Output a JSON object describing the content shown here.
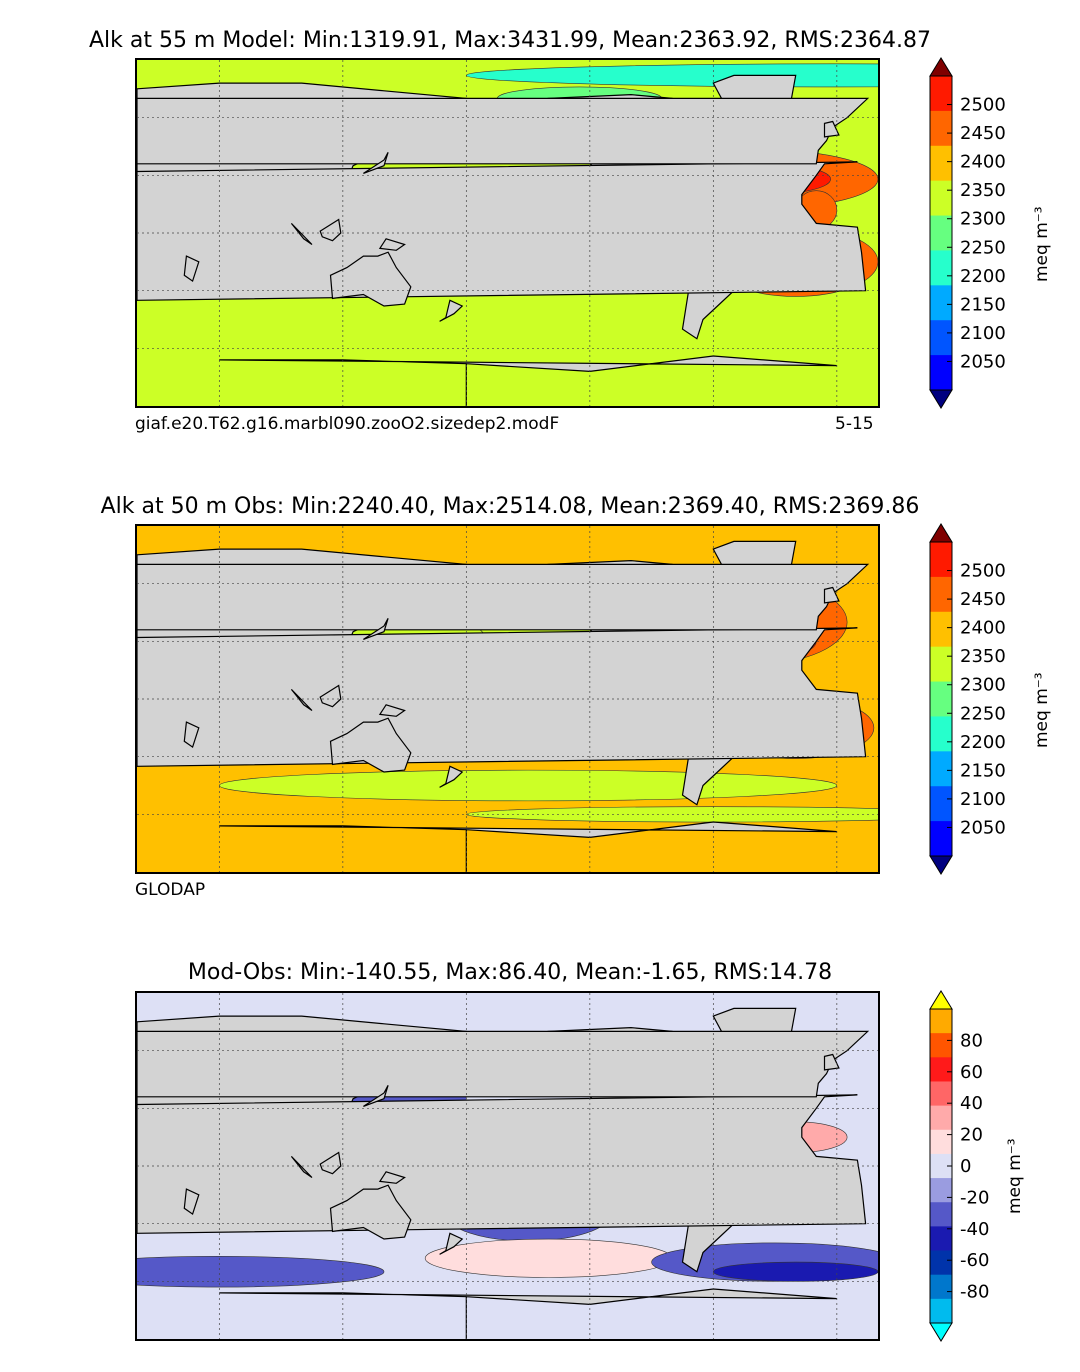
{
  "panels": [
    {
      "title": "Alk at 55 m Model: Min:1319.91, Max:3431.99, Mean:2363.92, RMS:2364.87",
      "caption_left": "giaf.e20.T62.g16.marbl090.zooO2.sizedep2.modF",
      "caption_right": "5-15",
      "colorbar": {
        "unit": "meq m⁻³",
        "ticks": [
          "2500",
          "2450",
          "2400",
          "2350",
          "2300",
          "2250",
          "2200",
          "2150",
          "2100",
          "2050"
        ],
        "colors": [
          "#7f0000",
          "#ff1a00",
          "#ff6600",
          "#ffc000",
          "#ccff26",
          "#66ff80",
          "#26ffcc",
          "#00aaff",
          "#0055ff",
          "#0000ff",
          "#00007f"
        ]
      }
    },
    {
      "title": "Alk at 50 m Obs: Min:2240.40, Max:2514.08, Mean:2369.40, RMS:2369.86",
      "caption_left": "GLODAP",
      "caption_right": "",
      "colorbar": {
        "unit": "meq m⁻³",
        "ticks": [
          "2500",
          "2450",
          "2400",
          "2350",
          "2300",
          "2250",
          "2200",
          "2150",
          "2100",
          "2050"
        ],
        "colors": [
          "#7f0000",
          "#ff1a00",
          "#ff6600",
          "#ffc000",
          "#ccff26",
          "#66ff80",
          "#26ffcc",
          "#00aaff",
          "#0055ff",
          "#0000ff",
          "#00007f"
        ]
      }
    },
    {
      "title": "Mod-Obs: Min:-140.55, Max:86.40, Mean:-1.65, RMS:14.78",
      "caption_left": "",
      "caption_right": "",
      "colorbar": {
        "unit": "meq m⁻³",
        "ticks": [
          "80",
          "60",
          "40",
          "20",
          "0",
          "-20",
          "-40",
          "-60",
          "-80"
        ],
        "colors": [
          "#ffff00",
          "#ffaa00",
          "#ff5500",
          "#ff1a1a",
          "#ff6666",
          "#ffaaaa",
          "#ffdddd",
          "#dde0f5",
          "#9a9ce0",
          "#5558c8",
          "#1a1ab0",
          "#0033aa",
          "#0077cc",
          "#00bbee",
          "#00ffff"
        ]
      }
    }
  ],
  "chart_data": [
    {
      "type": "heatmap",
      "title": "Alk at 55 m Model: Min:1319.91, Max:3431.99, Mean:2363.92, RMS:2364.87",
      "variable": "Alk",
      "depth_m": 55,
      "source": "Model",
      "stats": {
        "min": 1319.91,
        "max": 3431.99,
        "mean": 2363.92,
        "rms": 2364.87
      },
      "colorbar_levels": [
        2050,
        2100,
        2150,
        2200,
        2250,
        2300,
        2350,
        2400,
        2450,
        2500
      ],
      "colorbar_extend": "both",
      "units": "meq m-3"
    },
    {
      "type": "heatmap",
      "title": "Alk at 50 m Obs: Min:2240.40, Max:2514.08, Mean:2369.40, RMS:2369.86",
      "variable": "Alk",
      "depth_m": 50,
      "source": "Obs",
      "stats": {
        "min": 2240.4,
        "max": 2514.08,
        "mean": 2369.4,
        "rms": 2369.86
      },
      "colorbar_levels": [
        2050,
        2100,
        2150,
        2200,
        2250,
        2300,
        2350,
        2400,
        2450,
        2500
      ],
      "colorbar_extend": "both",
      "units": "meq m-3"
    },
    {
      "type": "heatmap",
      "title": "Mod-Obs: Min:-140.55, Max:86.40, Mean:-1.65, RMS:14.78",
      "variable": "Alk difference",
      "stats": {
        "min": -140.55,
        "max": 86.4,
        "mean": -1.65,
        "rms": 14.78
      },
      "colorbar_levels": [
        -80,
        -60,
        -40,
        -20,
        0,
        20,
        40,
        60,
        80
      ],
      "colorbar_extend": "both",
      "units": "meq m-3"
    }
  ]
}
